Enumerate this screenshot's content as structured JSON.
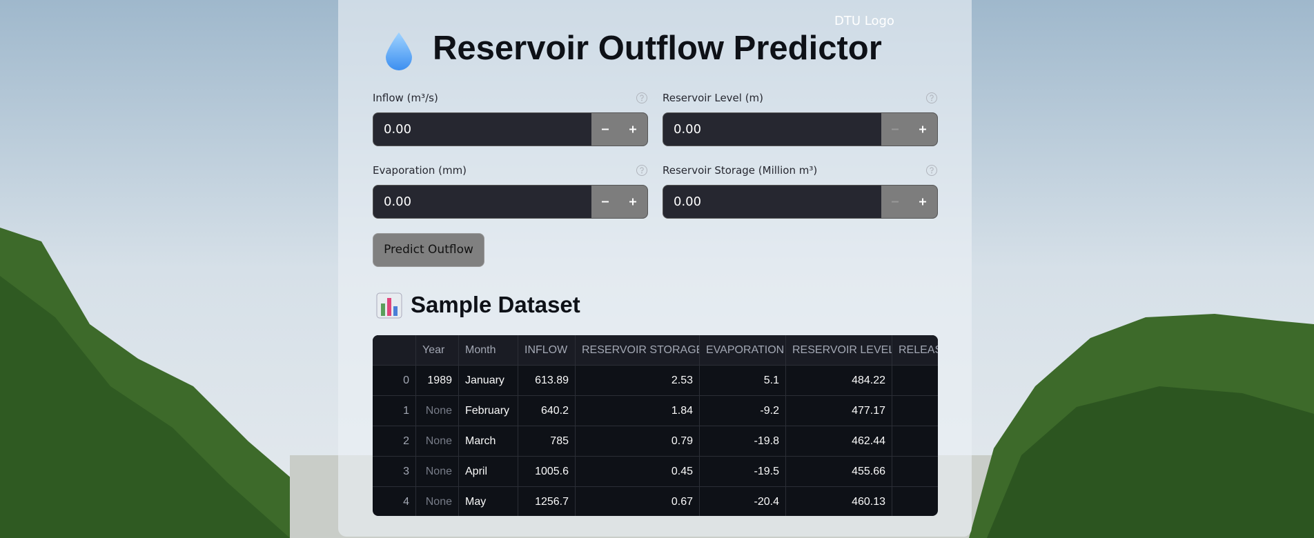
{
  "header": {
    "logo_alt": "DTU Logo",
    "title": "Reservoir Outflow Predictor"
  },
  "form": {
    "fields": [
      {
        "label": "Inflow (m³/s)",
        "value": "0.00"
      },
      {
        "label": "Reservoir Level (m)",
        "value": "0.00"
      },
      {
        "label": "Evaporation (mm)",
        "value": "0.00"
      },
      {
        "label": "Reservoir Storage (Million m³)",
        "value": "0.00"
      }
    ],
    "button": "Predict Outflow"
  },
  "dataset": {
    "title": "Sample Dataset",
    "columns": [
      "Year",
      "Month",
      "INFLOW",
      "RESERVOIR STORAGE",
      "EVAPORATION",
      "RESERVOIR LEVEL",
      "RELEASE"
    ],
    "rows": [
      [
        0,
        1989,
        "January",
        613.89,
        2.53,
        5.1,
        484.22
      ],
      [
        1,
        "None",
        "February",
        640.2,
        1.84,
        -9.2,
        477.17
      ],
      [
        2,
        "None",
        "March",
        785,
        0.79,
        -19.8,
        462.44
      ],
      [
        3,
        "None",
        "April",
        1005.6,
        0.45,
        -19.5,
        455.66
      ],
      [
        4,
        "None",
        "May",
        1256.7,
        0.67,
        -20.4,
        460.13
      ]
    ]
  }
}
